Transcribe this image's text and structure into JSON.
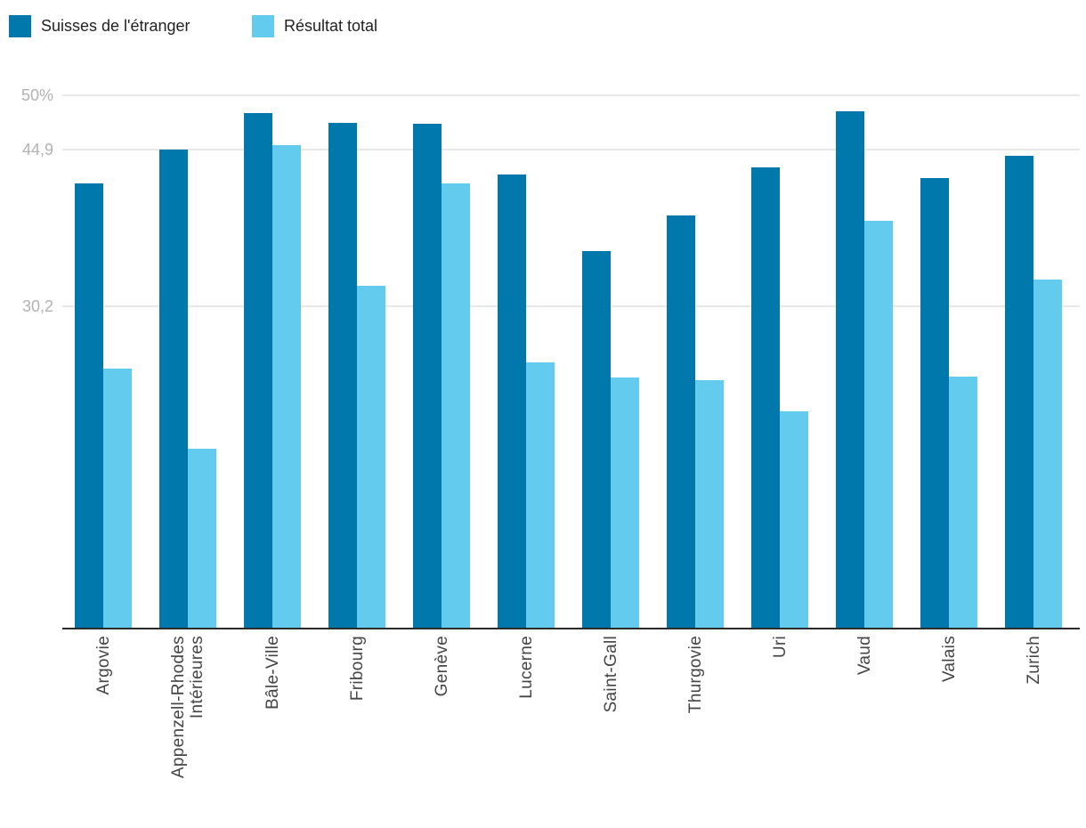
{
  "chart_data": {
    "type": "bar",
    "title": "",
    "xlabel": "",
    "ylabel": "",
    "unit": "%",
    "ylim": [
      0,
      50
    ],
    "grid": true,
    "legend_position": "top-left",
    "yticks": [
      {
        "label": "50%",
        "value": 50
      },
      {
        "label": "44,9",
        "value": 44.9
      },
      {
        "label": "30,2",
        "value": 30.2
      }
    ],
    "categories": [
      "Argovie",
      "Appenzell-Rhodes\nIntérieures",
      "Bâle-Ville",
      "Fribourg",
      "Genève",
      "Lucerne",
      "Saint-Gall",
      "Thurgovie",
      "Uri",
      "Vaud",
      "Valais",
      "Zurich"
    ],
    "series": [
      {
        "name": "Suisses de l'étranger",
        "color": "#0078ab",
        "values": [
          41.7,
          44.9,
          48.3,
          47.4,
          47.3,
          42.6,
          35.4,
          38.7,
          43.2,
          48.5,
          42.2,
          44.3
        ]
      },
      {
        "name": "Résultat total",
        "color": "#62cbee",
        "values": [
          24.4,
          16.9,
          45.3,
          32.1,
          41.7,
          25.0,
          23.5,
          23.3,
          20.4,
          38.2,
          23.6,
          32.7
        ]
      }
    ]
  }
}
